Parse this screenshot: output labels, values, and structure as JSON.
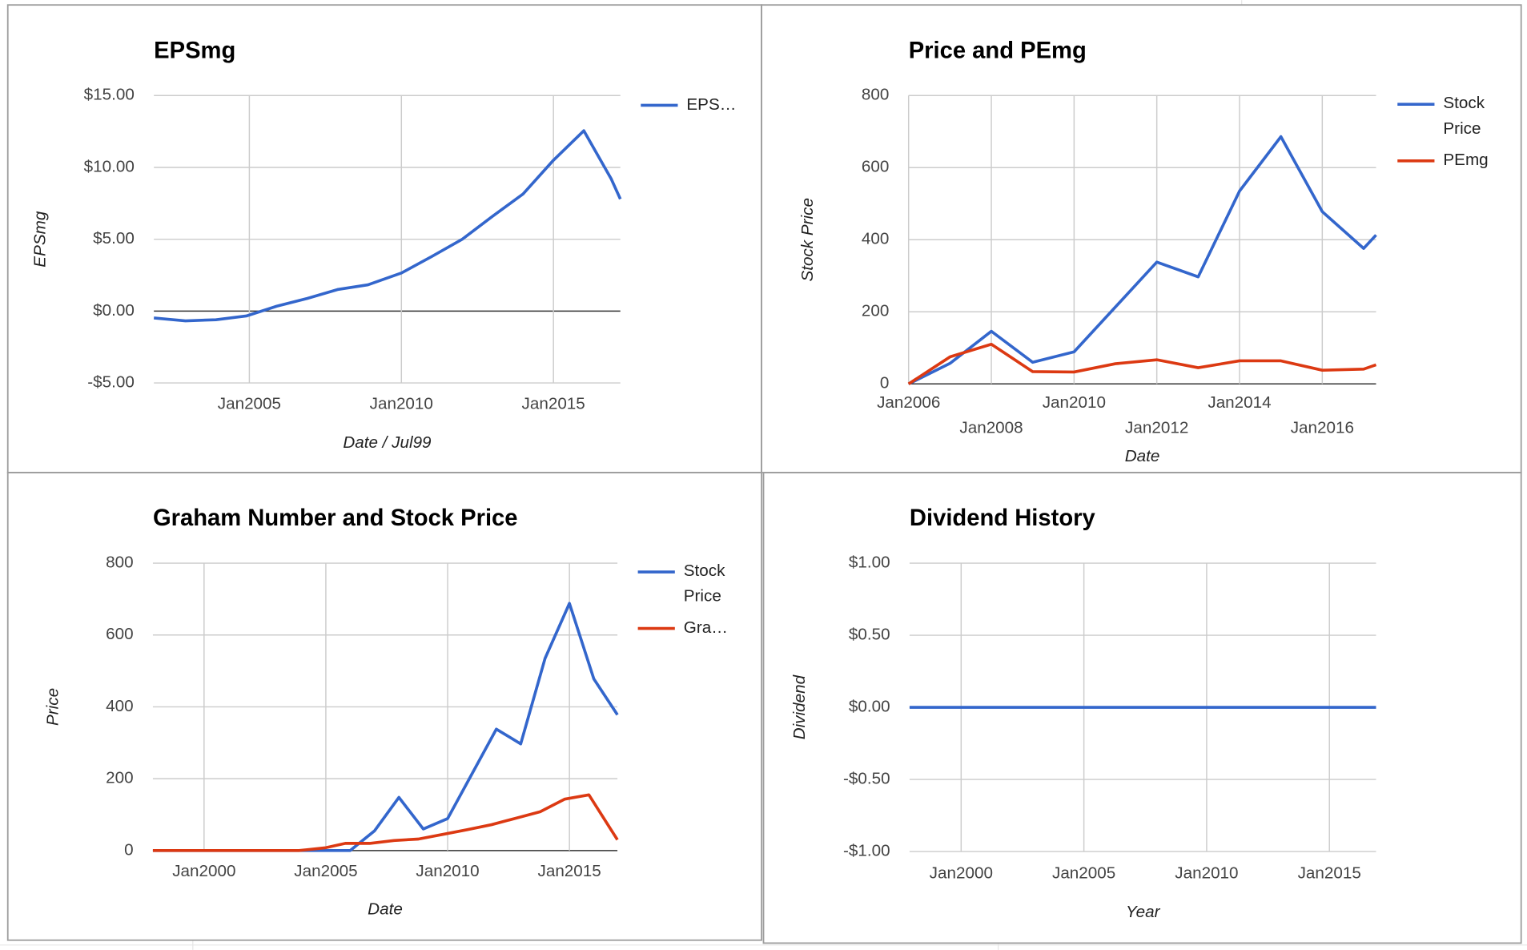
{
  "chart_data": [
    {
      "type": "line",
      "title": "EPSmg",
      "xlabel": "Date / Jul99",
      "ylabel": "EPSmg",
      "grid": true,
      "legend": "right",
      "xlim": [
        2001.86,
        2017.2
      ],
      "xticks": [
        {
          "value": 2005,
          "label": "Jan2005"
        },
        {
          "value": 2010,
          "label": "Jan2010"
        },
        {
          "value": 2015,
          "label": "Jan2015"
        }
      ],
      "ylim": [
        -5,
        15
      ],
      "yticks": [
        {
          "value": -5,
          "label": "-$5.00"
        },
        {
          "value": 0,
          "label": "$0.00"
        },
        {
          "value": 5,
          "label": "$5.00"
        },
        {
          "value": 10,
          "label": "$10.00"
        },
        {
          "value": 15,
          "label": "$15.00"
        }
      ],
      "series": [
        {
          "name": "EPS…",
          "color": "#3366cc",
          "x": [
            2001.86,
            2002.9,
            2003.9,
            2004.9,
            2005.9,
            2006.9,
            2007.9,
            2008.9,
            2010,
            2011,
            2012,
            2013,
            2014,
            2015,
            2016,
            2016.9,
            2017.2
          ],
          "values": [
            -0.48,
            -0.68,
            -0.6,
            -0.34,
            0.34,
            0.88,
            1.5,
            1.83,
            2.65,
            3.8,
            5.0,
            6.6,
            8.15,
            10.5,
            12.55,
            9.2,
            7.8
          ]
        }
      ]
    },
    {
      "type": "line",
      "title": "Price and PEmg",
      "xlabel": "Date",
      "ylabel": "Stock Price",
      "grid": true,
      "legend": "right",
      "xlim": [
        2006,
        2017.3
      ],
      "xticks": [
        {
          "value": 2006,
          "label": "Jan2006"
        },
        {
          "value": 2008,
          "label": "Jan2008"
        },
        {
          "value": 2010,
          "label": "Jan2010"
        },
        {
          "value": 2012,
          "label": "Jan2012"
        },
        {
          "value": 2014,
          "label": "Jan2014"
        },
        {
          "value": 2016,
          "label": "Jan2016"
        }
      ],
      "ylim": [
        0,
        800
      ],
      "yticks": [
        0,
        200,
        400,
        600,
        800
      ],
      "series": [
        {
          "name": "Stock Price",
          "color": "#3366cc",
          "x": [
            2006,
            2007,
            2008,
            2009,
            2010,
            2012,
            2013,
            2014,
            2015,
            2016,
            2017,
            2017.3
          ],
          "values": [
            0,
            57,
            146,
            60,
            89,
            338,
            297,
            535,
            686,
            478,
            376,
            413
          ]
        },
        {
          "name": "PEmg",
          "color": "#dc3912",
          "x": [
            2006,
            2007,
            2008,
            2009,
            2010,
            2011,
            2012,
            2013,
            2014,
            2015,
            2016,
            2017,
            2017.3
          ],
          "values": [
            0,
            75,
            110,
            34,
            33,
            56,
            67,
            45,
            64,
            64,
            38,
            41,
            53
          ]
        }
      ]
    },
    {
      "type": "line",
      "title": "Graham Number and Stock Price",
      "xlabel": "Date",
      "ylabel": "Price",
      "grid": true,
      "legend": "right",
      "xlim": [
        1997.9,
        2016.97
      ],
      "xticks": [
        {
          "value": 2000,
          "label": "Jan2000"
        },
        {
          "value": 2005,
          "label": "Jan2005"
        },
        {
          "value": 2010,
          "label": "Jan2010"
        },
        {
          "value": 2015,
          "label": "Jan2015"
        }
      ],
      "ylim": [
        0,
        800
      ],
      "yticks": [
        0,
        200,
        400,
        600,
        800
      ],
      "series": [
        {
          "name": "Stock Price",
          "color": "#3366cc",
          "x": [
            1997.9,
            2006,
            2007,
            2008,
            2009,
            2010,
            2012,
            2013,
            2014,
            2015,
            2016,
            2016.97
          ],
          "values": [
            0,
            0,
            55,
            148,
            60,
            89,
            338,
            297,
            535,
            688,
            478,
            378
          ]
        },
        {
          "name": "Gra…",
          "color": "#dc3912",
          "x": [
            1997.9,
            2003.9,
            2005,
            2005.8,
            2006.8,
            2007.8,
            2008.8,
            2009.8,
            2010.8,
            2011.8,
            2012.8,
            2013.8,
            2014.8,
            2015.8,
            2016.97
          ],
          "values": [
            0,
            0,
            8,
            20,
            20,
            28,
            32,
            45,
            58,
            72,
            90,
            108,
            143,
            155,
            30
          ]
        }
      ]
    },
    {
      "type": "line",
      "title": "Dividend History",
      "xlabel": "Year",
      "ylabel": "Dividend",
      "grid": true,
      "xlim": [
        1997.9,
        2016.9
      ],
      "xticks": [
        {
          "value": 2000,
          "label": "Jan2000"
        },
        {
          "value": 2005,
          "label": "Jan2005"
        },
        {
          "value": 2010,
          "label": "Jan2010"
        },
        {
          "value": 2015,
          "label": "Jan2015"
        }
      ],
      "ylim": [
        -1,
        1
      ],
      "yticks": [
        {
          "value": -1,
          "label": "-$1.00"
        },
        {
          "value": -0.5,
          "label": "-$0.50"
        },
        {
          "value": 0,
          "label": "$0.00"
        },
        {
          "value": 0.5,
          "label": "$0.50"
        },
        {
          "value": 1,
          "label": "$1.00"
        }
      ],
      "series": [
        {
          "color": "#3366cc",
          "x": [
            1997.9,
            2016.9
          ],
          "values": [
            0,
            0
          ]
        }
      ]
    }
  ]
}
